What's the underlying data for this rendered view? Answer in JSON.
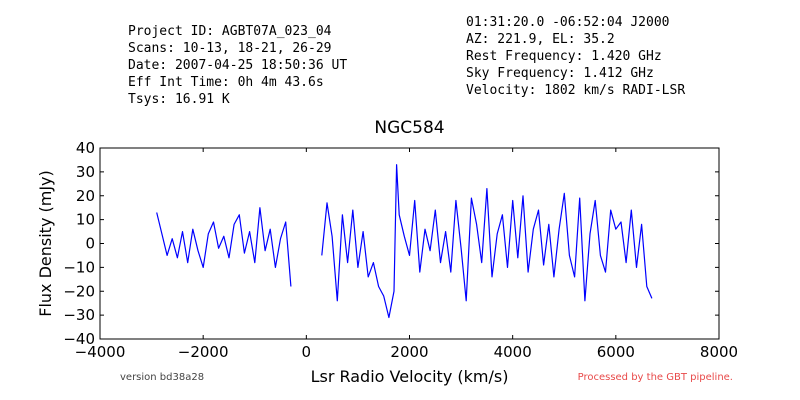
{
  "header": {
    "left_lines": [
      "Project ID: AGBT07A_023_04",
      "Scans: 10-13, 18-21, 26-29",
      "Date: 2007-04-25 18:50:36 UT",
      "Eff Int Time: 0h 4m 43.6s",
      "Tsys: 16.91 K"
    ],
    "right_lines": [
      "01:31:20.0 -06:52:04 J2000",
      "AZ: 221.9, EL: 35.2",
      "Rest Frequency:   1.420 GHz",
      "Sky Frequency:    1.412 GHz",
      "Velocity: 1802 km/s RADI-LSR"
    ]
  },
  "footer": {
    "version": "version bd38a28",
    "pipeline": "Processed by the GBT pipeline.",
    "pipeline_color": "#e84a4a",
    "version_color": "#444444"
  },
  "chart_data": {
    "type": "line",
    "title": "NGC584",
    "xlabel": "Lsr Radio Velocity (km/s)",
    "ylabel": "Flux Density (mJy)",
    "xlim": [
      -4000,
      8000
    ],
    "ylim": [
      -40,
      40
    ],
    "xticks": [
      -4000,
      -2000,
      0,
      2000,
      4000,
      6000,
      8000
    ],
    "yticks": [
      -40,
      -30,
      -20,
      -10,
      0,
      10,
      20,
      30,
      40
    ],
    "xtick_labels": [
      "−4000",
      "−2000",
      "0",
      "2000",
      "4000",
      "6000",
      "8000"
    ],
    "ytick_labels": [
      "−40",
      "−30",
      "−20",
      "−10",
      "0",
      "10",
      "20",
      "30",
      "40"
    ],
    "grid": false,
    "legend": "none",
    "series_color": "#0000ff",
    "series": [
      {
        "segments": [
          {
            "x": [
              -2900,
              -2800,
              -2700,
              -2600,
              -2500,
              -2400,
              -2300,
              -2200,
              -2100,
              -2000,
              -1900,
              -1800,
              -1700,
              -1600,
              -1500,
              -1400,
              -1300,
              -1200,
              -1100,
              -1000,
              -900,
              -800,
              -700,
              -600,
              -500,
              -400,
              -300
            ],
            "y": [
              13,
              4,
              -5,
              2,
              -6,
              5,
              -8,
              6,
              -3,
              -10,
              4,
              9,
              -2,
              3,
              -6,
              8,
              12,
              -4,
              5,
              -8,
              15,
              -3,
              6,
              -10,
              2,
              9,
              -18
            ]
          },
          {
            "x": [
              300,
              400,
              500,
              600,
              700,
              800,
              900,
              1000,
              1100,
              1200,
              1300,
              1400,
              1500,
              1600,
              1700,
              1750,
              1800,
              1900,
              2000,
              2100,
              2200,
              2300,
              2400,
              2500,
              2600,
              2700,
              2800,
              2900,
              3000,
              3100,
              3200,
              3300,
              3400,
              3500,
              3600,
              3700,
              3800,
              3900,
              4000,
              4100,
              4200,
              4300,
              4400,
              4500,
              4600,
              4700,
              4800,
              4900,
              5000,
              5100,
              5200,
              5300,
              5400,
              5500,
              5600,
              5700,
              5800,
              5900,
              6000,
              6100,
              6200,
              6300,
              6400,
              6500,
              6600,
              6700
            ],
            "y": [
              -5,
              17,
              3,
              -24,
              12,
              -8,
              14,
              -10,
              5,
              -14,
              -8,
              -18,
              -22,
              -31,
              -20,
              33,
              12,
              3,
              -5,
              18,
              -12,
              6,
              -3,
              14,
              -8,
              5,
              -12,
              18,
              -2,
              -24,
              19,
              8,
              -8,
              23,
              -14,
              4,
              12,
              -10,
              18,
              -6,
              20,
              -12,
              6,
              14,
              -9,
              8,
              -14,
              6,
              21,
              -5,
              -14,
              19,
              -24,
              4,
              18,
              -5,
              -12,
              14,
              6,
              9,
              -8,
              14,
              -10,
              8,
              -18,
              -23
            ]
          }
        ]
      }
    ]
  }
}
